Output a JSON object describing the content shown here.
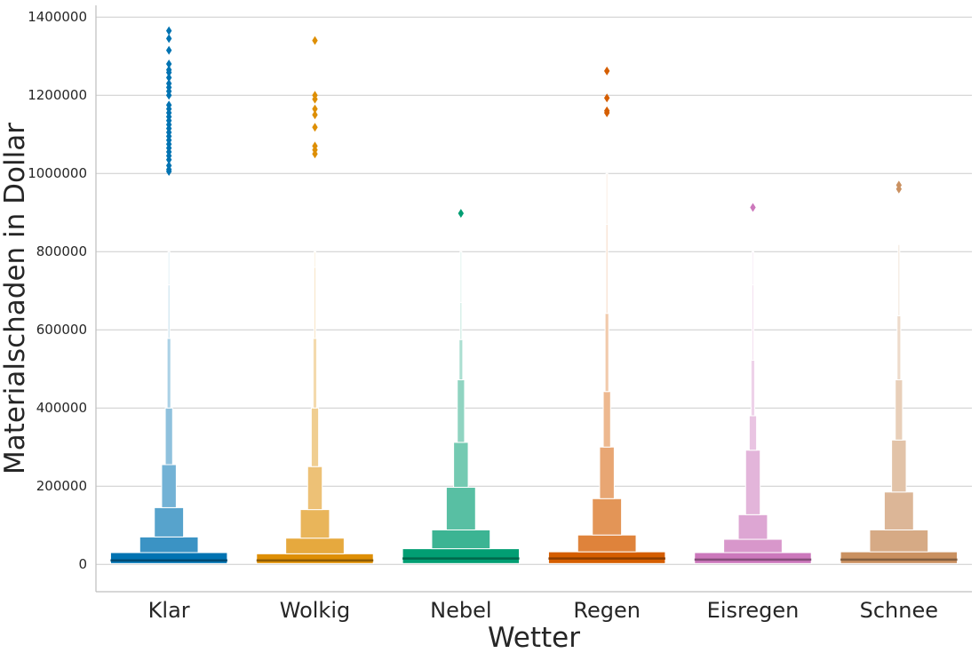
{
  "chart_data": {
    "type": "boxenplot",
    "xlabel": "Wetter",
    "ylabel": "Materialschaden in Dollar",
    "ylim": [
      -70000,
      1430000
    ],
    "yticks": [
      0,
      200000,
      400000,
      600000,
      800000,
      1000000,
      1200000,
      1400000
    ],
    "ytick_labels": [
      "0",
      "200000",
      "400000",
      "600000",
      "800000",
      "1000000",
      "1200000",
      "1400000"
    ],
    "grid": "horizontal",
    "categories": [
      "Klar",
      "Wolkig",
      "Nebel",
      "Regen",
      "Eisregen",
      "Schnee"
    ],
    "colors": [
      "#0173b2",
      "#de8f05",
      "#029e73",
      "#d55e00",
      "#cc78bc",
      "#ca9161"
    ],
    "series": [
      {
        "median": 10000,
        "boxes": [
          [
            2000,
            30000
          ],
          [
            30000,
            70000
          ],
          [
            70000,
            145000
          ],
          [
            145000,
            255000
          ],
          [
            255000,
            400000
          ],
          [
            400000,
            578000
          ],
          [
            578000,
            715000
          ],
          [
            715000,
            800000
          ]
        ],
        "outliers": [
          1005000,
          1010000,
          1020000,
          1035000,
          1045000,
          1055000,
          1065000,
          1075000,
          1085000,
          1095000,
          1105000,
          1115000,
          1125000,
          1135000,
          1145000,
          1155000,
          1165000,
          1175000,
          1200000,
          1210000,
          1220000,
          1230000,
          1245000,
          1258000,
          1265000,
          1280000,
          1315000,
          1345000,
          1365000
        ]
      },
      {
        "median": 10000,
        "boxes": [
          [
            2000,
            27000
          ],
          [
            27000,
            67000
          ],
          [
            67000,
            140000
          ],
          [
            140000,
            250000
          ],
          [
            250000,
            400000
          ],
          [
            400000,
            578000
          ],
          [
            578000,
            760000
          ],
          [
            760000,
            800000
          ]
        ],
        "outliers": [
          1050000,
          1060000,
          1070000,
          1118000,
          1150000,
          1165000,
          1190000,
          1200000,
          1340000
        ]
      },
      {
        "median": 15000,
        "boxes": [
          [
            2000,
            40000
          ],
          [
            40000,
            88000
          ],
          [
            88000,
            197000
          ],
          [
            197000,
            312000
          ],
          [
            312000,
            472000
          ],
          [
            472000,
            575000
          ],
          [
            575000,
            670000
          ],
          [
            670000,
            800000
          ]
        ],
        "outliers": [
          898000
        ]
      },
      {
        "median": 15000,
        "boxes": [
          [
            2000,
            32000
          ],
          [
            32000,
            75000
          ],
          [
            75000,
            168000
          ],
          [
            168000,
            300000
          ],
          [
            300000,
            442000
          ],
          [
            442000,
            642000
          ],
          [
            642000,
            870000
          ],
          [
            870000,
            1000000
          ]
        ],
        "outliers": [
          1155000,
          1160000,
          1193000,
          1262000
        ]
      },
      {
        "median": 12000,
        "boxes": [
          [
            2000,
            30000
          ],
          [
            30000,
            64000
          ],
          [
            64000,
            127000
          ],
          [
            127000,
            292000
          ],
          [
            292000,
            380000
          ],
          [
            380000,
            522000
          ],
          [
            522000,
            715000
          ],
          [
            715000,
            800000
          ]
        ],
        "outliers": [
          913000
        ]
      },
      {
        "median": 12000,
        "boxes": [
          [
            2000,
            32000
          ],
          [
            32000,
            88000
          ],
          [
            88000,
            185000
          ],
          [
            185000,
            318000
          ],
          [
            318000,
            472000
          ],
          [
            472000,
            636000
          ],
          [
            636000,
            818000
          ]
        ],
        "outliers": [
          960000,
          970000
        ]
      }
    ]
  }
}
